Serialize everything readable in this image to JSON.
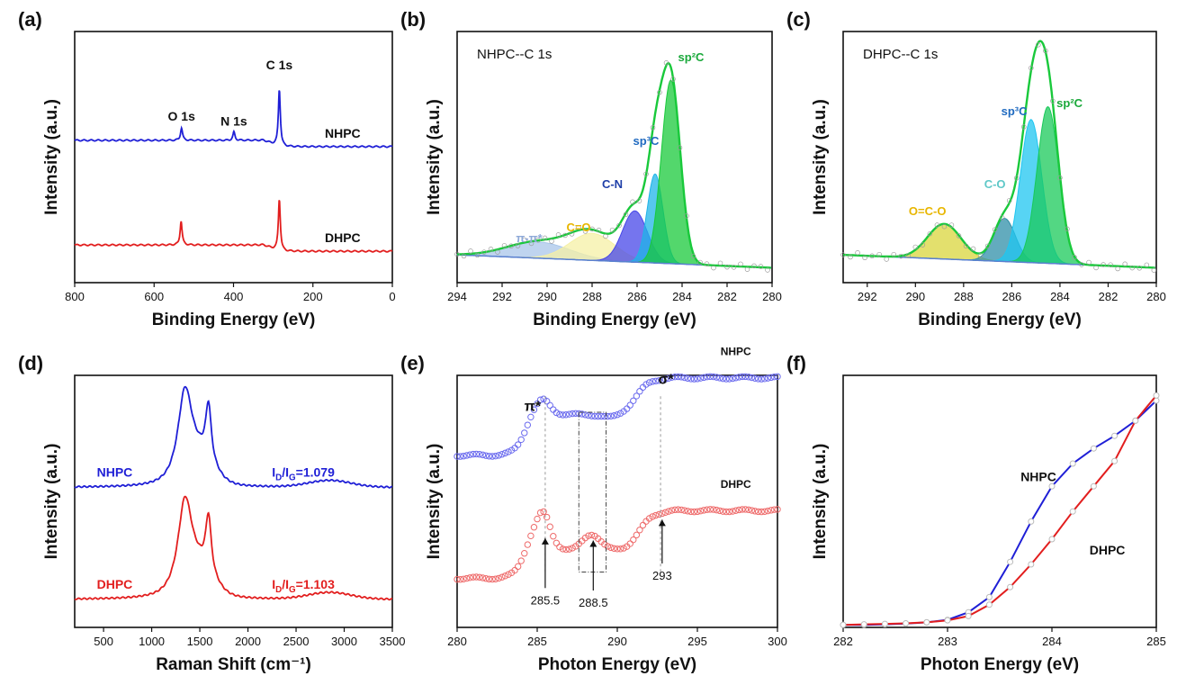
{
  "chart_data": [
    {
      "id": "a",
      "type": "line",
      "panel_label": "(a)",
      "xlabel": "Binding Energy (eV)",
      "ylabel": "Intensity (a.u.)",
      "xlim": [
        800,
        0
      ],
      "xticks": [
        800,
        600,
        400,
        200,
        0
      ],
      "yticks": false,
      "series": [
        {
          "name": "NHPC",
          "color": "#1f1fd6",
          "offset": 1.0,
          "peaks": [
            {
              "label": "O 1s",
              "x": 531,
              "h": 0.12
            },
            {
              "label": "N 1s",
              "x": 399,
              "h": 0.08
            },
            {
              "label": "C 1s",
              "x": 284.6,
              "h": 0.55
            }
          ]
        },
        {
          "name": "DHPC",
          "color": "#e21e1e",
          "offset": 0.0,
          "peaks": [
            {
              "x": 532,
              "h": 0.23
            },
            {
              "x": 284.6,
              "h": 0.5
            }
          ]
        }
      ],
      "annotations": [
        {
          "text": "O 1s"
        },
        {
          "text": "N 1s"
        },
        {
          "text": "C 1s"
        }
      ]
    },
    {
      "id": "b",
      "type": "area",
      "panel_label": "(b)",
      "title": "NHPC--C 1s",
      "xlabel": "Binding Energy (eV)",
      "ylabel": "Intensity (a.u.)",
      "xlim": [
        294,
        280
      ],
      "xticks": [
        294,
        292,
        290,
        288,
        286,
        284,
        282,
        280
      ],
      "yticks": false,
      "components": [
        {
          "name": "π-π*",
          "center": 290.4,
          "height": 0.06,
          "width": 1.4,
          "color": "#a9c6ea"
        },
        {
          "name": "C=O",
          "center": 288.0,
          "height": 0.1,
          "width": 1.0,
          "color": "#f5f0a5"
        },
        {
          "name": "C-N",
          "center": 286.1,
          "height": 0.19,
          "width": 0.55,
          "color": "#4747e8"
        },
        {
          "name": "sp³C",
          "center": 285.2,
          "height": 0.33,
          "width": 0.35,
          "color": "#1fb4e8"
        },
        {
          "name": "sp²C",
          "center": 284.5,
          "height": 0.68,
          "width": 0.42,
          "color": "#19c93b"
        }
      ],
      "labels": [
        {
          "text": "π-π*",
          "color": "#8ea9d8"
        },
        {
          "text": "C=O",
          "color": "#e8b600"
        },
        {
          "text": "C-N",
          "color": "#1f3fa8"
        },
        {
          "text": "sp³C",
          "color": "#1f6ac0"
        },
        {
          "text": "sp²C",
          "color": "#19a83a"
        }
      ]
    },
    {
      "id": "c",
      "type": "area",
      "panel_label": "(c)",
      "title": "DHPC--C 1s",
      "xlabel": "Binding Energy (eV)",
      "ylabel": "Intensity (a.u.)",
      "xlim": [
        293,
        280
      ],
      "xticks": [
        292,
        290,
        288,
        286,
        284,
        282,
        280
      ],
      "yticks": false,
      "components": [
        {
          "name": "O=C-O",
          "center": 288.8,
          "height": 0.13,
          "width": 0.7,
          "color": "#d9d63c"
        },
        {
          "name": "C-O",
          "center": 286.3,
          "height": 0.16,
          "width": 0.45,
          "color": "#2f8fa8"
        },
        {
          "name": "sp³C",
          "center": 285.2,
          "height": 0.53,
          "width": 0.45,
          "color": "#1fc6f0"
        },
        {
          "name": "sp²C",
          "center": 284.5,
          "height": 0.58,
          "width": 0.45,
          "color": "#19c95a"
        }
      ],
      "labels": [
        {
          "text": "O=C-O",
          "color": "#e8b600"
        },
        {
          "text": "C-O",
          "color": "#5fc8c8"
        },
        {
          "text": "sp³C",
          "color": "#1f6ac0"
        },
        {
          "text": "sp²C",
          "color": "#19a83a"
        }
      ]
    },
    {
      "id": "d",
      "type": "line",
      "panel_label": "(d)",
      "xlabel": "Raman Shift (cm⁻¹)",
      "ylabel": "Intensity (a.u.)",
      "xlim": [
        200,
        3500
      ],
      "xticks": [
        500,
        1000,
        1500,
        2000,
        2500,
        3000,
        3500
      ],
      "yticks": false,
      "series": [
        {
          "name": "NHPC",
          "color": "#1f1fd6",
          "offset": 1.0,
          "ratio_label": "I_D/I_G=1.079",
          "D_height": 0.77,
          "G_height": 0.72
        },
        {
          "name": "DHPC",
          "color": "#e21e1e",
          "offset": 0.0,
          "ratio_label": "I_D/I_G=1.103",
          "D_height": 0.79,
          "G_height": 0.72
        }
      ]
    },
    {
      "id": "e",
      "type": "scatter",
      "panel_label": "(e)",
      "xlabel": "Photon Energy (eV)",
      "ylabel": "Intensity (a.u.)",
      "xlim": [
        280,
        300
      ],
      "xticks": [
        280,
        285,
        290,
        295,
        300
      ],
      "yticks": false,
      "series": [
        {
          "name": "NHPC",
          "color": "#6a6aee",
          "offset": 1.0
        },
        {
          "name": "DHPC",
          "color": "#ee6a6a",
          "offset": 0.0
        }
      ],
      "annotations": [
        {
          "text": "π*",
          "x": 285.5
        },
        {
          "text": "σ*",
          "x": 292.7
        },
        {
          "text": "285.5",
          "x": 285.5
        },
        {
          "text": "288.5",
          "x": 288.5
        },
        {
          "text": "293",
          "x": 292.8
        }
      ]
    },
    {
      "id": "f",
      "type": "line",
      "panel_label": "(f)",
      "xlabel": "Photon Energy (eV)",
      "ylabel": "Intensity (a.u.)",
      "xlim": [
        282,
        285
      ],
      "xticks": [
        282,
        283,
        284,
        285
      ],
      "yticks": false,
      "series": [
        {
          "name": "NHPC",
          "color": "#1f1fd6",
          "x": [
            282.0,
            282.2,
            282.4,
            282.6,
            282.8,
            283.0,
            283.2,
            283.4,
            283.6,
            283.8,
            284.0,
            284.2,
            284.4,
            284.6,
            284.8,
            285.0
          ],
          "y": [
            0.01,
            0.01,
            0.012,
            0.015,
            0.02,
            0.03,
            0.06,
            0.12,
            0.26,
            0.42,
            0.56,
            0.65,
            0.71,
            0.76,
            0.82,
            0.9
          ]
        },
        {
          "name": "DHPC",
          "color": "#e21e1e",
          "x": [
            282.0,
            282.2,
            282.4,
            282.6,
            282.8,
            283.0,
            283.2,
            283.4,
            283.6,
            283.8,
            284.0,
            284.2,
            284.4,
            284.6,
            284.8,
            285.0
          ],
          "y": [
            0.01,
            0.012,
            0.014,
            0.016,
            0.02,
            0.028,
            0.045,
            0.09,
            0.16,
            0.25,
            0.35,
            0.46,
            0.56,
            0.66,
            0.82,
            0.92
          ]
        }
      ]
    }
  ]
}
